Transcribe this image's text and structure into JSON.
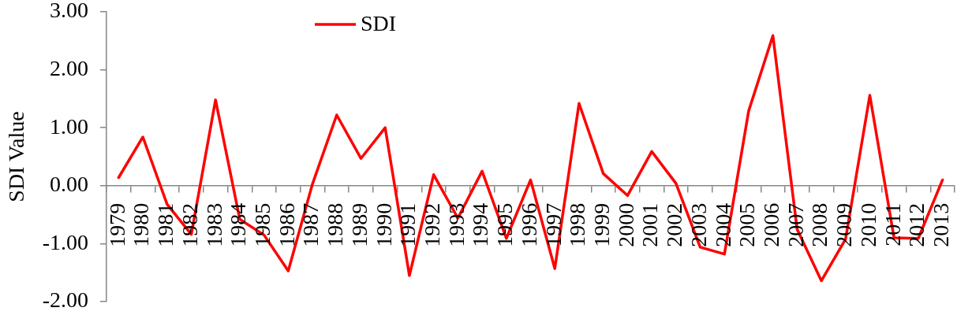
{
  "chart_data": {
    "type": "line",
    "ylabel": "SDI Value",
    "categories": [
      "1979",
      "1980",
      "1981",
      "1982",
      "1983",
      "1984",
      "1985",
      "1986",
      "1987",
      "1988",
      "1989",
      "1990",
      "1991",
      "1992",
      "1993",
      "1994",
      "1995",
      "1996",
      "1997",
      "1998",
      "1999",
      "2000",
      "2001",
      "2002",
      "2003",
      "2004",
      "2005",
      "2006",
      "2007",
      "2008",
      "2009",
      "2010",
      "2011",
      "2012",
      "2013"
    ],
    "series": [
      {
        "name": "SDI",
        "color": "#ff0000",
        "values": [
          0.14,
          0.84,
          -0.32,
          -0.84,
          1.48,
          -0.58,
          -0.85,
          -1.47,
          0.03,
          1.22,
          0.47,
          1.0,
          -1.55,
          0.19,
          -0.56,
          0.25,
          -0.91,
          0.1,
          -1.43,
          1.42,
          0.21,
          -0.17,
          0.59,
          0.04,
          -1.06,
          -1.18,
          1.29,
          2.59,
          -0.75,
          -1.64,
          -0.92,
          1.56,
          -0.9,
          -0.91,
          0.1
        ]
      }
    ],
    "ylim": [
      -2,
      3
    ],
    "yticks": [
      {
        "value": -2,
        "label": "-2.00"
      },
      {
        "value": -1,
        "label": "-1.00"
      },
      {
        "value": 0,
        "label": "0.00"
      },
      {
        "value": 1,
        "label": "1.00"
      },
      {
        "value": 2,
        "label": "2.00"
      },
      {
        "value": 3,
        "label": "3.00"
      }
    ],
    "grid": false,
    "legend": "top left",
    "marker": "none",
    "line_style": "solid"
  }
}
